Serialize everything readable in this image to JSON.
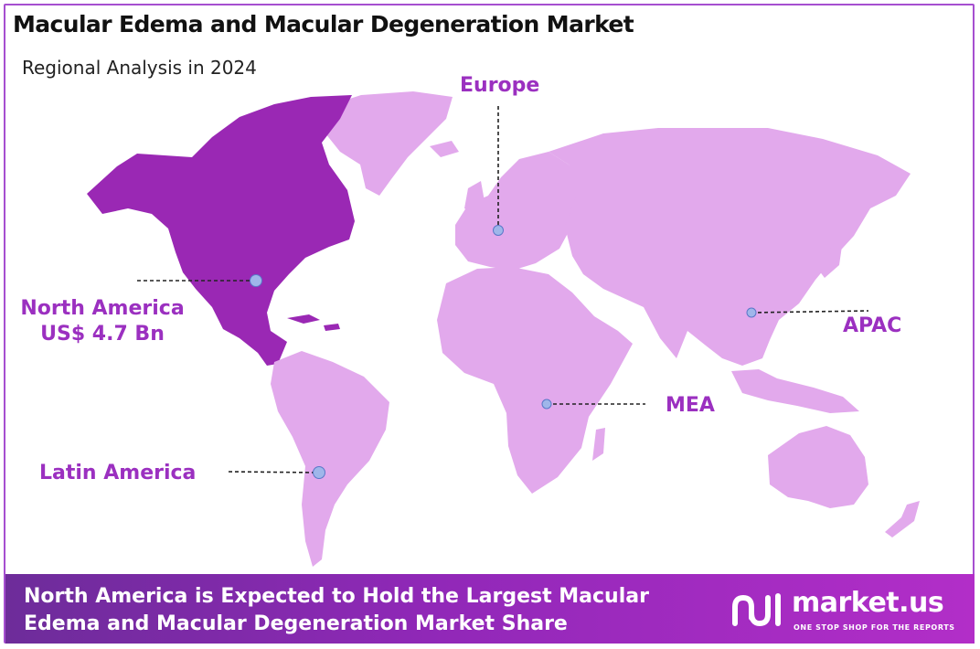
{
  "title": "Macular Edema and Macular Degeneration Market",
  "subtitle": "Regional Analysis in 2024",
  "colors": {
    "highlight_region": "#9a28b4",
    "other_regions": "#e2a9ec",
    "label_text": "#9b30c0",
    "marker": "#9fb6ea",
    "banner_start": "#6d2c9a",
    "banner_end": "#b22ec8"
  },
  "regions": [
    {
      "id": "north-america",
      "name": "North America",
      "value": "US$ 4.7 Bn",
      "highlighted": true
    },
    {
      "id": "europe",
      "name": "Europe",
      "value": "",
      "highlighted": false
    },
    {
      "id": "apac",
      "name": "APAC",
      "value": "",
      "highlighted": false
    },
    {
      "id": "mea",
      "name": "MEA",
      "value": "",
      "highlighted": false
    },
    {
      "id": "latin-america",
      "name": "Latin America",
      "value": "",
      "highlighted": false
    }
  ],
  "footer": {
    "text": "North America is Expected to Hold the Largest Macular Edema and Macular Degeneration Market Share",
    "brand_name": "market.us",
    "brand_tagline": "ONE STOP SHOP FOR THE REPORTS",
    "brand_icon": "market-us-logo-icon"
  }
}
